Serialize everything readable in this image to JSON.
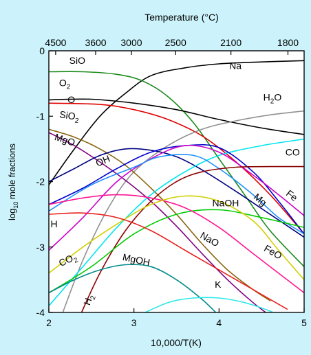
{
  "chart_data": {
    "type": "line",
    "xlabel": "10,000/T(K)",
    "ylabel_prefix": "log",
    "ylabel_sub": "10",
    "ylabel_suffix": " mole fractions",
    "top_axis_label": "Temperature (°C)",
    "xlim": [
      2,
      5
    ],
    "ylim": [
      -4,
      0
    ],
    "x_ticks": [
      2,
      3,
      4,
      5
    ],
    "y_ticks": [
      0,
      -1,
      -2,
      -3,
      -4
    ],
    "x_tick_labels": [
      "2",
      "3",
      "4",
      "5"
    ],
    "y_tick_labels": [
      "0",
      "-1",
      "-2",
      "-3",
      "-4"
    ],
    "top_ticks": [
      {
        "label": "4500",
        "x": 2.08
      },
      {
        "label": "3600",
        "x": 2.55
      },
      {
        "label": "3000",
        "x": 2.97
      },
      {
        "label": "2500",
        "x": 3.49
      },
      {
        "label": "2100",
        "x": 4.14
      },
      {
        "label": "1800",
        "x": 4.81
      }
    ],
    "series": [
      {
        "name": "Na",
        "color": "#000000",
        "points": [
          [
            2,
            -2.05
          ],
          [
            2.3,
            -1.5
          ],
          [
            2.6,
            -1.0
          ],
          [
            2.9,
            -0.65
          ],
          [
            3.2,
            -0.38
          ],
          [
            3.6,
            -0.26
          ],
          [
            4.0,
            -0.2
          ],
          [
            4.5,
            -0.17
          ],
          [
            5.0,
            -0.15
          ]
        ]
      },
      {
        "name": "SiO",
        "color": "#1a8a1a",
        "points": [
          [
            2,
            -0.32
          ],
          [
            2.4,
            -0.32
          ],
          [
            2.8,
            -0.36
          ],
          [
            3.1,
            -0.46
          ],
          [
            3.4,
            -0.7
          ],
          [
            3.7,
            -1.1
          ],
          [
            4.0,
            -1.65
          ],
          [
            4.3,
            -2.2
          ],
          [
            4.6,
            -2.75
          ],
          [
            5.0,
            -3.3
          ]
        ]
      },
      {
        "name": "O2",
        "color": "#000000",
        "points": [
          [
            2,
            -0.75
          ],
          [
            2.5,
            -0.74
          ],
          [
            3.0,
            -0.8
          ],
          [
            3.5,
            -0.9
          ],
          [
            4.0,
            -1.05
          ],
          [
            4.5,
            -1.18
          ],
          [
            5.0,
            -1.28
          ]
        ]
      },
      {
        "name": "O",
        "color": "#e00000",
        "points": [
          [
            2,
            -0.8
          ],
          [
            2.6,
            -0.82
          ],
          [
            3.0,
            -0.9
          ],
          [
            3.4,
            -1.05
          ],
          [
            3.8,
            -1.3
          ],
          [
            4.2,
            -1.7
          ],
          [
            4.6,
            -2.2
          ],
          [
            5.0,
            -2.8
          ]
        ]
      },
      {
        "name": "H2O",
        "color": "#909090",
        "points": [
          [
            2.15,
            -4.05
          ],
          [
            2.4,
            -3.2
          ],
          [
            2.7,
            -2.4
          ],
          [
            3.0,
            -1.85
          ],
          [
            3.4,
            -1.45
          ],
          [
            3.8,
            -1.2
          ],
          [
            4.2,
            -1.07
          ],
          [
            4.6,
            -0.98
          ],
          [
            5.0,
            -0.92
          ]
        ]
      },
      {
        "name": "SiO2",
        "color": "#8b6914",
        "points": [
          [
            2,
            -1.2
          ],
          [
            2.3,
            -1.32
          ],
          [
            2.6,
            -1.5
          ],
          [
            2.9,
            -1.75
          ],
          [
            3.2,
            -2.1
          ],
          [
            3.5,
            -2.5
          ],
          [
            3.8,
            -2.95
          ],
          [
            4.1,
            -3.35
          ],
          [
            4.4,
            -3.65
          ],
          [
            4.6,
            -3.82
          ]
        ]
      },
      {
        "name": "MgO",
        "color": "#800080",
        "points": [
          [
            2,
            -1.25
          ],
          [
            2.3,
            -1.45
          ],
          [
            2.6,
            -1.7
          ],
          [
            2.9,
            -1.98
          ],
          [
            3.2,
            -2.3
          ],
          [
            3.5,
            -2.68
          ],
          [
            3.8,
            -3.1
          ],
          [
            4.1,
            -3.5
          ],
          [
            4.4,
            -3.85
          ],
          [
            4.6,
            -4.05
          ]
        ]
      },
      {
        "name": "OH",
        "color": "#000080",
        "points": [
          [
            2,
            -2.0
          ],
          [
            2.3,
            -1.8
          ],
          [
            2.6,
            -1.6
          ],
          [
            2.9,
            -1.5
          ],
          [
            3.2,
            -1.52
          ],
          [
            3.5,
            -1.62
          ],
          [
            3.8,
            -1.82
          ],
          [
            4.2,
            -2.15
          ],
          [
            4.6,
            -2.5
          ],
          [
            5.0,
            -2.85
          ]
        ]
      },
      {
        "name": "CO",
        "color": "#00e5ee",
        "points": [
          [
            2,
            -3.9
          ],
          [
            2.4,
            -3.3
          ],
          [
            2.8,
            -2.7
          ],
          [
            3.2,
            -2.2
          ],
          [
            3.6,
            -1.85
          ],
          [
            4.0,
            -1.6
          ],
          [
            4.5,
            -1.45
          ],
          [
            5.0,
            -1.35
          ]
        ]
      },
      {
        "name": "Fe",
        "color": "#0000cd",
        "points": [
          [
            2,
            -2.35
          ],
          [
            2.4,
            -2.1
          ],
          [
            2.8,
            -1.8
          ],
          [
            3.2,
            -1.55
          ],
          [
            3.6,
            -1.45
          ],
          [
            4.0,
            -1.48
          ],
          [
            4.4,
            -1.85
          ],
          [
            4.7,
            -2.3
          ],
          [
            5.0,
            -2.8
          ]
        ]
      },
      {
        "name": "Mg",
        "color": "#cc00cc",
        "points": [
          [
            2,
            -3.05
          ],
          [
            2.4,
            -2.55
          ],
          [
            2.8,
            -2.0
          ],
          [
            3.2,
            -1.65
          ],
          [
            3.6,
            -1.45
          ],
          [
            4.0,
            -1.55
          ],
          [
            4.4,
            -1.9
          ],
          [
            4.7,
            -2.2
          ],
          [
            5.0,
            -2.52
          ]
        ]
      },
      {
        "name": "H",
        "color": "#1e90ff",
        "points": [
          [
            2,
            -2.45
          ],
          [
            2.5,
            -2.05
          ],
          [
            3.0,
            -1.78
          ],
          [
            3.3,
            -1.62
          ],
          [
            3.7,
            -1.6
          ],
          [
            4.0,
            -1.8
          ],
          [
            4.4,
            -2.2
          ],
          [
            4.7,
            -2.55
          ],
          [
            5.0,
            -2.8
          ]
        ]
      },
      {
        "name": "H2",
        "color": "#8b0000",
        "points": [
          [
            2.35,
            -4.1
          ],
          [
            2.6,
            -3.4
          ],
          [
            2.9,
            -2.75
          ],
          [
            3.2,
            -2.3
          ],
          [
            3.5,
            -2.0
          ],
          [
            3.8,
            -1.85
          ],
          [
            4.2,
            -1.78
          ],
          [
            4.6,
            -1.77
          ],
          [
            5.0,
            -1.77
          ]
        ]
      },
      {
        "name": "NaOH",
        "color": "#00cc00",
        "points": [
          [
            2,
            -3.7
          ],
          [
            2.5,
            -3.3
          ],
          [
            3.0,
            -2.8
          ],
          [
            3.5,
            -2.5
          ],
          [
            4.0,
            -2.43
          ],
          [
            4.5,
            -2.55
          ],
          [
            5.0,
            -2.7
          ]
        ]
      },
      {
        "name": "NaO",
        "color": "#ff1493",
        "points": [
          [
            2,
            -2.35
          ],
          [
            2.4,
            -2.25
          ],
          [
            2.8,
            -2.2
          ],
          [
            3.2,
            -2.25
          ],
          [
            3.6,
            -2.4
          ],
          [
            4.0,
            -2.7
          ],
          [
            4.4,
            -3.1
          ],
          [
            4.8,
            -3.5
          ],
          [
            5.0,
            -3.7
          ]
        ]
      },
      {
        "name": "FeO",
        "color": "#d0d000",
        "points": [
          [
            2,
            -3.4
          ],
          [
            2.4,
            -3.0
          ],
          [
            2.8,
            -2.65
          ],
          [
            3.2,
            -2.35
          ],
          [
            3.6,
            -2.22
          ],
          [
            4.0,
            -2.3
          ],
          [
            4.4,
            -2.6
          ],
          [
            4.7,
            -3.05
          ],
          [
            5.0,
            -3.5
          ]
        ]
      },
      {
        "name": "CO2",
        "color": "#e8201c",
        "points": [
          [
            2,
            -2.5
          ],
          [
            2.4,
            -2.48
          ],
          [
            2.8,
            -2.55
          ],
          [
            3.2,
            -2.75
          ],
          [
            3.6,
            -3.05
          ],
          [
            4.0,
            -3.35
          ],
          [
            4.4,
            -3.65
          ],
          [
            4.8,
            -3.95
          ]
        ]
      },
      {
        "name": "MgOH",
        "color": "#008b8b",
        "points": [
          [
            2,
            -3.7
          ],
          [
            2.3,
            -3.5
          ],
          [
            2.6,
            -3.35
          ],
          [
            2.9,
            -3.27
          ],
          [
            3.2,
            -3.3
          ],
          [
            3.5,
            -3.5
          ],
          [
            3.8,
            -3.8
          ],
          [
            4.0,
            -4.05
          ]
        ]
      },
      {
        "name": "K",
        "color": "#30e8e8",
        "points": [
          [
            3.05,
            -4.05
          ],
          [
            3.4,
            -3.85
          ],
          [
            3.7,
            -3.78
          ],
          [
            4.0,
            -3.78
          ],
          [
            4.3,
            -3.85
          ],
          [
            4.6,
            -3.98
          ],
          [
            4.7,
            -4.05
          ]
        ]
      }
    ],
    "labels": [
      {
        "text": "SiO",
        "x": 2.24,
        "y": -0.2,
        "anchor": "start"
      },
      {
        "text": "Na",
        "x": 4.12,
        "y": -0.28,
        "anchor": "start"
      },
      {
        "text": "O",
        "sub": "2",
        "x": 2.12,
        "y": -0.54,
        "anchor": "start"
      },
      {
        "text": "O",
        "x": 2.22,
        "y": -0.8,
        "anchor": "start"
      },
      {
        "text": "H",
        "sub": "2",
        "suffix": "O",
        "x": 4.52,
        "y": -0.76,
        "anchor": "start"
      },
      {
        "text": "SiO",
        "sub": "2",
        "x": 2.12,
        "y": -1.02,
        "anchor": "start",
        "rotate": 8
      },
      {
        "text": "MgO",
        "x": 2.06,
        "y": -1.36,
        "anchor": "start",
        "rotate": 18
      },
      {
        "text": "OH",
        "x": 2.57,
        "y": -1.77,
        "anchor": "start",
        "rotate": -22
      },
      {
        "text": "CO",
        "x": 4.78,
        "y": -1.6,
        "anchor": "start"
      },
      {
        "text": "Fe",
        "x": 4.78,
        "y": -2.2,
        "anchor": "start",
        "rotate": 38
      },
      {
        "text": "Mg",
        "x": 4.4,
        "y": -2.25,
        "anchor": "start",
        "rotate": 40
      },
      {
        "text": "NaOH",
        "x": 3.92,
        "y": -2.38,
        "anchor": "start"
      },
      {
        "text": "H",
        "x": 2.02,
        "y": -2.7,
        "anchor": "start"
      },
      {
        "text": "NaO",
        "x": 3.77,
        "y": -2.85,
        "anchor": "start",
        "rotate": 30
      },
      {
        "text": "FeO",
        "x": 4.52,
        "y": -3.05,
        "anchor": "start",
        "rotate": 30
      },
      {
        "text": "CO",
        "sub": "2",
        "x": 2.14,
        "y": -3.3,
        "anchor": "start",
        "rotate": -25
      },
      {
        "text": "MgOH",
        "x": 2.86,
        "y": -3.2,
        "anchor": "start",
        "rotate": 12
      },
      {
        "text": "K",
        "x": 3.95,
        "y": -3.62,
        "anchor": "start"
      },
      {
        "text": "H",
        "sub": "2",
        "x": 2.48,
        "y": -3.9,
        "anchor": "start",
        "rotate": -72
      }
    ]
  }
}
